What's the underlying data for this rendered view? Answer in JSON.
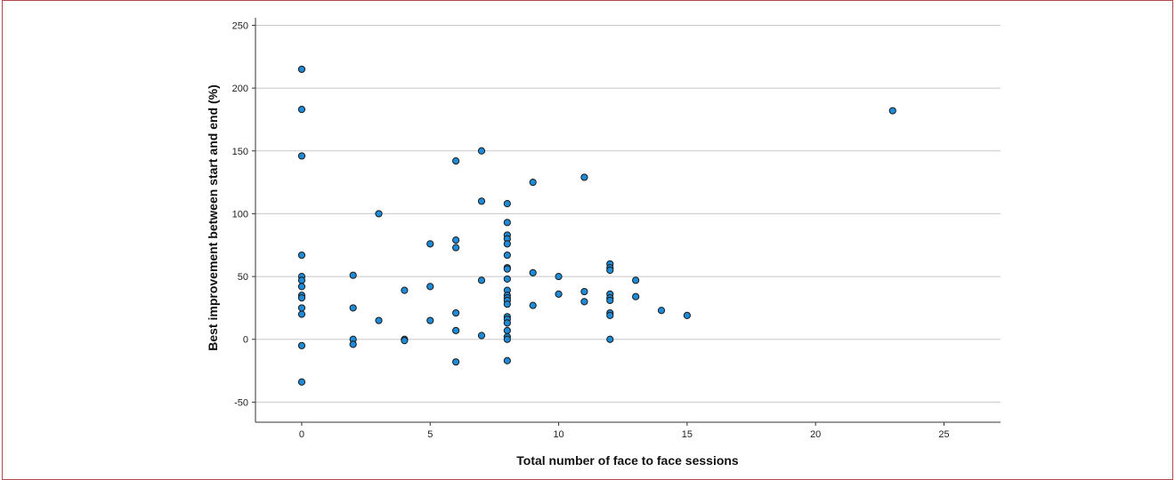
{
  "chart_data": {
    "type": "scatter",
    "xlabel": "Total number of face to face sessions",
    "ylabel": "Best improvement between start and end (%)",
    "xlim": [
      -1.8,
      27.2
    ],
    "ylim": [
      -66,
      256
    ],
    "xticks": [
      0,
      5,
      10,
      15,
      20,
      25
    ],
    "yticks": [
      -50,
      0,
      50,
      100,
      150,
      200,
      250
    ],
    "grid": "horizontal",
    "marker_color": "#1f8ad6",
    "marker_edge": "#1a1a1a",
    "points": [
      {
        "x": 0,
        "y": 215
      },
      {
        "x": 0,
        "y": 183
      },
      {
        "x": 0,
        "y": 146
      },
      {
        "x": 0,
        "y": 67
      },
      {
        "x": 0,
        "y": 50
      },
      {
        "x": 0,
        "y": 47
      },
      {
        "x": 0,
        "y": 42
      },
      {
        "x": 0,
        "y": 35
      },
      {
        "x": 0,
        "y": 33
      },
      {
        "x": 0,
        "y": 25
      },
      {
        "x": 0,
        "y": 20
      },
      {
        "x": 0,
        "y": -5
      },
      {
        "x": 0,
        "y": -34
      },
      {
        "x": 2,
        "y": 51
      },
      {
        "x": 2,
        "y": 25
      },
      {
        "x": 2,
        "y": 0
      },
      {
        "x": 2,
        "y": -4
      },
      {
        "x": 3,
        "y": 100
      },
      {
        "x": 3,
        "y": 15
      },
      {
        "x": 4,
        "y": 39
      },
      {
        "x": 4,
        "y": 0
      },
      {
        "x": 4,
        "y": -1
      },
      {
        "x": 5,
        "y": 76
      },
      {
        "x": 5,
        "y": 42
      },
      {
        "x": 5,
        "y": 15
      },
      {
        "x": 6,
        "y": 142
      },
      {
        "x": 6,
        "y": 79
      },
      {
        "x": 6,
        "y": 73
      },
      {
        "x": 6,
        "y": 21
      },
      {
        "x": 6,
        "y": 7
      },
      {
        "x": 6,
        "y": -18
      },
      {
        "x": 7,
        "y": 150
      },
      {
        "x": 7,
        "y": 110
      },
      {
        "x": 7,
        "y": 47
      },
      {
        "x": 7,
        "y": 3
      },
      {
        "x": 8,
        "y": 108
      },
      {
        "x": 8,
        "y": 93
      },
      {
        "x": 8,
        "y": 83
      },
      {
        "x": 8,
        "y": 80
      },
      {
        "x": 8,
        "y": 76
      },
      {
        "x": 8,
        "y": 67
      },
      {
        "x": 8,
        "y": 57
      },
      {
        "x": 8,
        "y": 56
      },
      {
        "x": 8,
        "y": 48
      },
      {
        "x": 8,
        "y": 39
      },
      {
        "x": 8,
        "y": 35
      },
      {
        "x": 8,
        "y": 33
      },
      {
        "x": 8,
        "y": 31
      },
      {
        "x": 8,
        "y": 28
      },
      {
        "x": 8,
        "y": 18
      },
      {
        "x": 8,
        "y": 16
      },
      {
        "x": 8,
        "y": 13
      },
      {
        "x": 8,
        "y": 7
      },
      {
        "x": 8,
        "y": 2
      },
      {
        "x": 8,
        "y": 0
      },
      {
        "x": 8,
        "y": -17
      },
      {
        "x": 9,
        "y": 125
      },
      {
        "x": 9,
        "y": 53
      },
      {
        "x": 9,
        "y": 27
      },
      {
        "x": 10,
        "y": 50
      },
      {
        "x": 10,
        "y": 36
      },
      {
        "x": 11,
        "y": 129
      },
      {
        "x": 11,
        "y": 38
      },
      {
        "x": 11,
        "y": 30
      },
      {
        "x": 12,
        "y": 60
      },
      {
        "x": 12,
        "y": 57
      },
      {
        "x": 12,
        "y": 55
      },
      {
        "x": 12,
        "y": 36
      },
      {
        "x": 12,
        "y": 33
      },
      {
        "x": 12,
        "y": 31
      },
      {
        "x": 12,
        "y": 21
      },
      {
        "x": 12,
        "y": 19
      },
      {
        "x": 12,
        "y": 0
      },
      {
        "x": 13,
        "y": 47
      },
      {
        "x": 13,
        "y": 34
      },
      {
        "x": 14,
        "y": 23
      },
      {
        "x": 15,
        "y": 19
      },
      {
        "x": 23,
        "y": 182
      }
    ]
  }
}
